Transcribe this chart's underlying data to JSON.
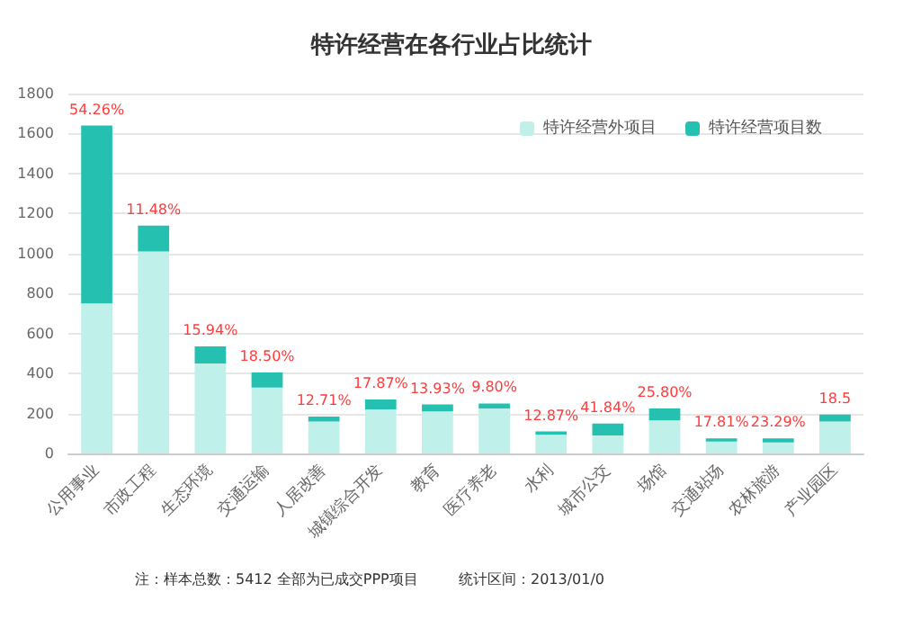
{
  "chart_data": {
    "type": "bar",
    "title": "特许经营在各行业占比统计",
    "categories": [
      "公用事业",
      "市政工程",
      "生态环境",
      "交通运输",
      "人居改善",
      "城镇综合开发",
      "教育",
      "医疗养老",
      "水利",
      "城市公交",
      "场馆",
      "交通站场",
      "农林旅游",
      "产业园区"
    ],
    "series": [
      {
        "name": "特许经营外项目",
        "color": "#bff0e9",
        "values": [
          750,
          1010,
          450,
          330,
          160,
          220,
          210,
          225,
          95,
          90,
          165,
          60,
          55,
          160
        ]
      },
      {
        "name": "特许经营项目数",
        "color": "#26c0b0",
        "values": [
          890,
          130,
          85,
          75,
          25,
          50,
          35,
          25,
          15,
          60,
          60,
          15,
          20,
          35
        ]
      }
    ],
    "stacked": true,
    "ylim": [
      0,
      1800
    ],
    "yticks": [
      0,
      200,
      400,
      600,
      800,
      {
        "value": 1000,
        "label": "1000"
      },
      {
        "value": 1200,
        "label": "1200"
      },
      {
        "value": 1400,
        "label": "1400"
      },
      {
        "value": 1600,
        "label": "1600"
      },
      {
        "value": 1800,
        "label": "1800"
      }
    ],
    "grid": "y",
    "legend": "top right",
    "annotations": [
      {
        "text": "54.26%",
        "x": "公用事业",
        "y": 1640
      },
      {
        "text": "11.48%",
        "x": "市政工程",
        "y": 1140
      },
      {
        "text": "15.94%",
        "x": "生态环境",
        "y": 535
      },
      {
        "text": "18.50%",
        "x": "交通运输",
        "y": 405
      },
      {
        "text": "12.71%",
        "x": "人居改善",
        "y": 185
      },
      {
        "text": "17.87%",
        "x": "城镇综合开发",
        "y": 270
      },
      {
        "text": "13.93%",
        "x": "教育",
        "y": 245
      },
      {
        "text": "9.80%",
        "x": "医疗养老",
        "y": 250
      },
      {
        "text": "12.87%",
        "x": "水利",
        "y": 110
      },
      {
        "text": "41.84%",
        "x": "城市公交",
        "y": 150
      },
      {
        "text": "25.80%",
        "x": "场馆",
        "y": 225
      },
      {
        "text": "17.81%",
        "x": "交通站场",
        "y": 75
      },
      {
        "text": "23.29%",
        "x": "农林旅游",
        "y": 75
      },
      {
        "text": "18.5",
        "x": "产业园区",
        "y": 195
      },
      "注：样本总数：5412 全部为已成交PPP项目",
      "统计区间：2013/01/0"
    ]
  }
}
